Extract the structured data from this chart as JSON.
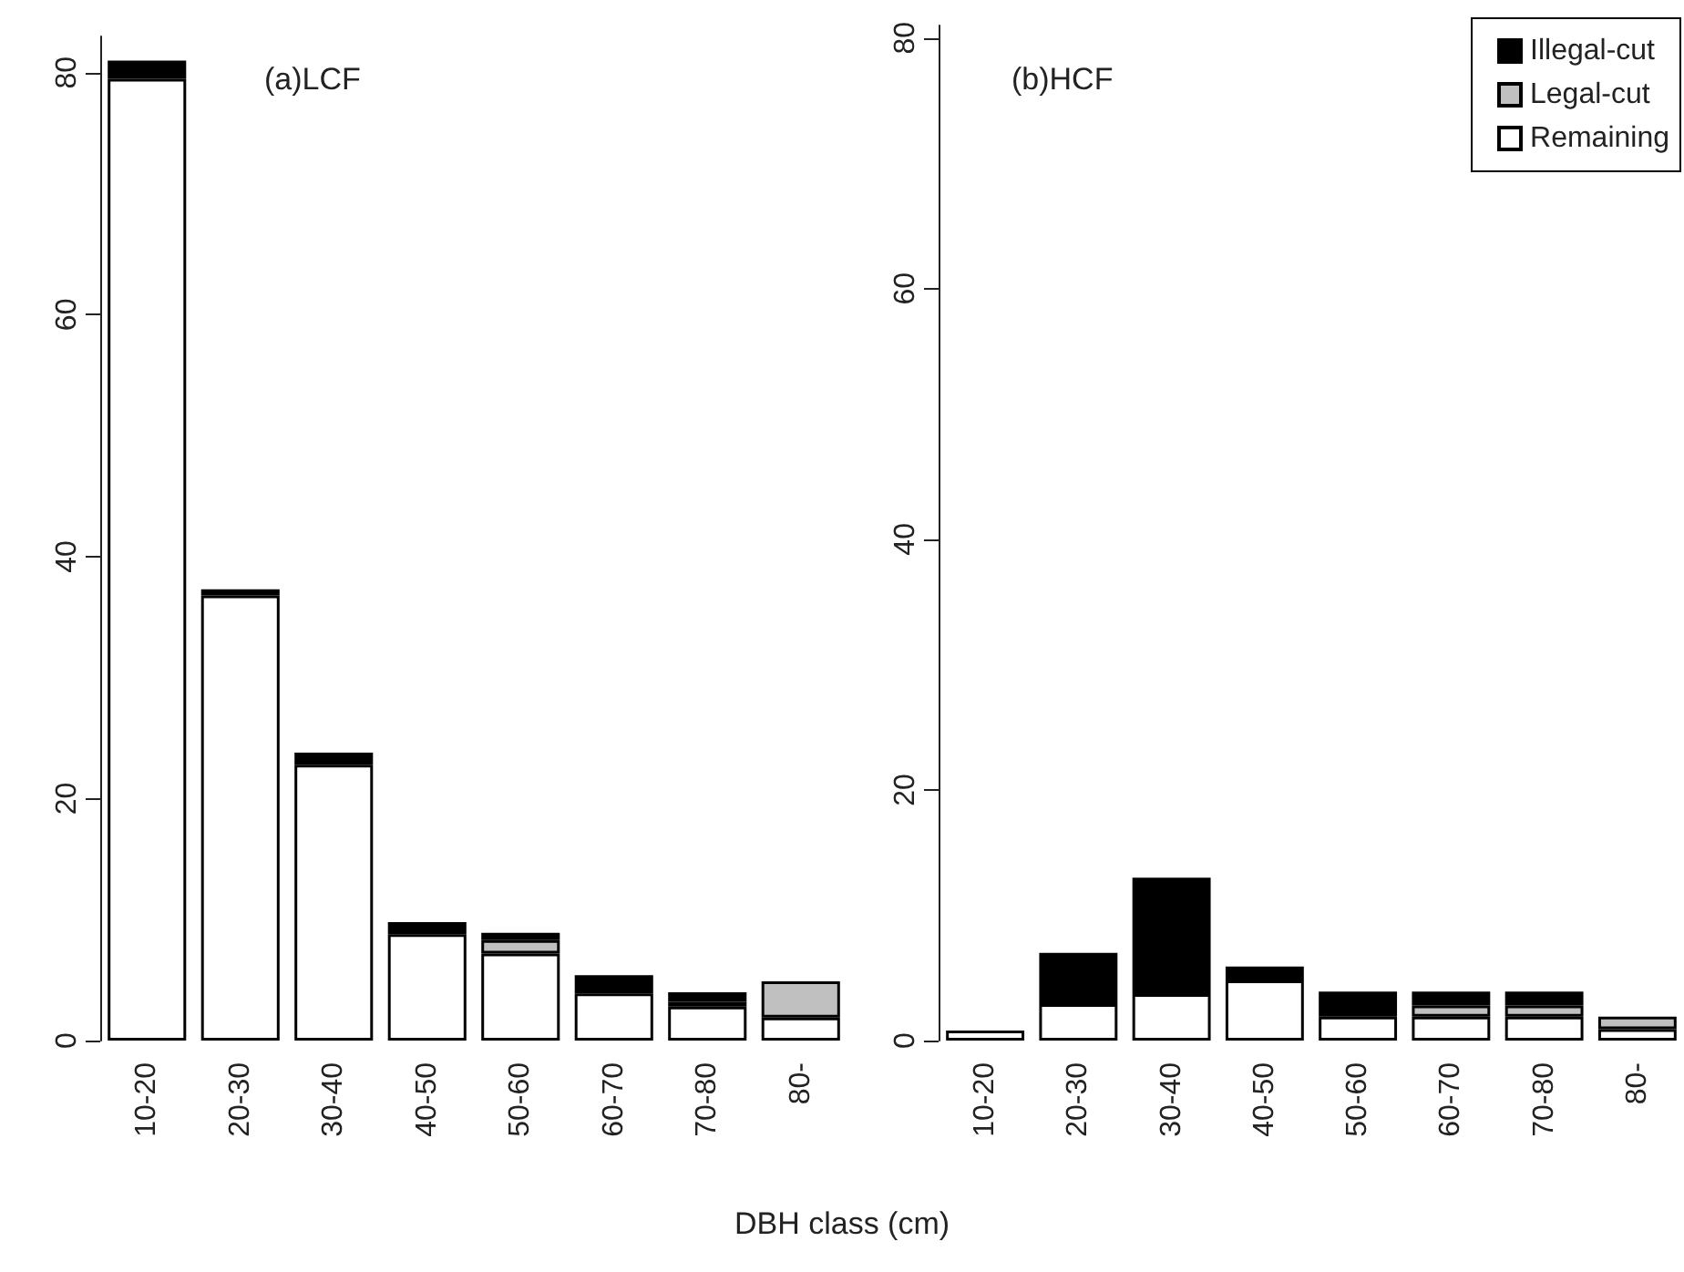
{
  "chart_data": [
    {
      "type": "bar",
      "title": "(a)LCF",
      "xlabel": "DBH class (cm)",
      "stacked": true,
      "categories": [
        "10-20",
        "20-30",
        "30-40",
        "40-50",
        "50-60",
        "60-70",
        "70-80",
        "80-"
      ],
      "series": [
        {
          "color": "#ffffff",
          "values": [
            79.5,
            36.8,
            22.8,
            8.8,
            7.2,
            3.9,
            2.8,
            1.9
          ]
        },
        {
          "color": "#c0c0c0",
          "values": [
            null,
            null,
            null,
            null,
            1.1,
            0.4,
            0.4,
            3.0
          ]
        },
        {
          "color": "#000000",
          "values": [
            1.5,
            0.5,
            1.0,
            1.0,
            0.6,
            1.1,
            0.8,
            null
          ]
        }
      ],
      "ylim": [
        0,
        83
      ],
      "yticks": [
        0,
        20,
        40,
        60,
        80
      ],
      "grid": false,
      "legend": false
    },
    {
      "type": "bar",
      "title": "(b)HCF",
      "stacked": true,
      "categories": [
        "10-20",
        "20-30",
        "30-40",
        "40-50",
        "50-60",
        "60-70",
        "70-80",
        "80-"
      ],
      "series": [
        {
          "name": "Remaining",
          "color": "#ffffff",
          "values": [
            0.8,
            2.9,
            3.7,
            4.8,
            1.9,
            1.9,
            1.9,
            0.9
          ]
        },
        {
          "name": "Legal-cut",
          "color": "#c0c0c0",
          "values": [
            null,
            null,
            null,
            null,
            null,
            0.9,
            0.9,
            1.0
          ]
        },
        {
          "name": "Illegal-cut",
          "color": "#000000",
          "values": [
            null,
            4.1,
            9.3,
            1.1,
            2.0,
            1.1,
            1.1,
            null
          ]
        }
      ],
      "ylim": [
        0,
        81
      ],
      "yticks": [
        0,
        20,
        40,
        60,
        80
      ],
      "grid": false,
      "legend": "top right"
    }
  ]
}
